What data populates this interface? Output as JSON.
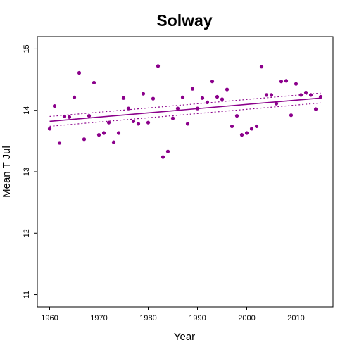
{
  "chart_data": {
    "type": "scatter",
    "title": "Solway",
    "xlabel": "Year",
    "ylabel": "Mean T Jul",
    "xlim": [
      1957.5,
      2017.5
    ],
    "ylim": [
      10.8,
      15.2
    ],
    "xticks": [
      1960,
      1970,
      1980,
      1990,
      2000,
      2010
    ],
    "yticks": [
      11,
      12,
      13,
      14,
      15
    ],
    "grid": false,
    "color": "#8b008b",
    "series": [
      {
        "values": [
          [
            1960,
            13.7
          ],
          [
            1961,
            14.07
          ],
          [
            1962,
            13.47
          ],
          [
            1963,
            13.9
          ],
          [
            1964,
            13.89
          ],
          [
            1965,
            14.21
          ],
          [
            1966,
            14.61
          ],
          [
            1967,
            13.53
          ],
          [
            1968,
            13.91
          ],
          [
            1969,
            14.45
          ],
          [
            1970,
            13.6
          ],
          [
            1971,
            13.63
          ],
          [
            1972,
            13.8
          ],
          [
            1973,
            13.48
          ],
          [
            1974,
            13.63
          ],
          [
            1975,
            14.2
          ],
          [
            1976,
            14.03
          ],
          [
            1977,
            13.82
          ],
          [
            1978,
            13.78
          ],
          [
            1979,
            14.27
          ],
          [
            1980,
            13.8
          ],
          [
            1981,
            14.19
          ],
          [
            1982,
            14.72
          ],
          [
            1983,
            13.24
          ],
          [
            1984,
            13.33
          ],
          [
            1985,
            13.87
          ],
          [
            1986,
            14.03
          ],
          [
            1987,
            14.21
          ],
          [
            1988,
            13.78
          ],
          [
            1989,
            14.35
          ],
          [
            1990,
            14.03
          ],
          [
            1991,
            14.2
          ],
          [
            1992,
            14.13
          ],
          [
            1993,
            14.47
          ],
          [
            1994,
            14.22
          ],
          [
            1995,
            14.18
          ],
          [
            1996,
            14.34
          ],
          [
            1997,
            13.74
          ],
          [
            1998,
            13.91
          ],
          [
            1999,
            13.6
          ],
          [
            2000,
            13.63
          ],
          [
            2001,
            13.7
          ],
          [
            2002,
            13.74
          ],
          [
            2003,
            14.71
          ],
          [
            2004,
            14.25
          ],
          [
            2005,
            14.25
          ],
          [
            2006,
            14.11
          ],
          [
            2007,
            14.47
          ],
          [
            2008,
            14.48
          ],
          [
            2009,
            13.92
          ],
          [
            2010,
            14.43
          ],
          [
            2011,
            14.25
          ],
          [
            2012,
            14.29
          ],
          [
            2013,
            14.25
          ],
          [
            2014,
            14.02
          ],
          [
            2015,
            14.22
          ]
        ]
      }
    ],
    "trend": {
      "x": [
        1960,
        2015
      ],
      "fit": [
        13.82,
        14.2
      ],
      "upper": [
        13.9,
        14.28
      ],
      "lower": [
        13.74,
        14.12
      ]
    }
  }
}
